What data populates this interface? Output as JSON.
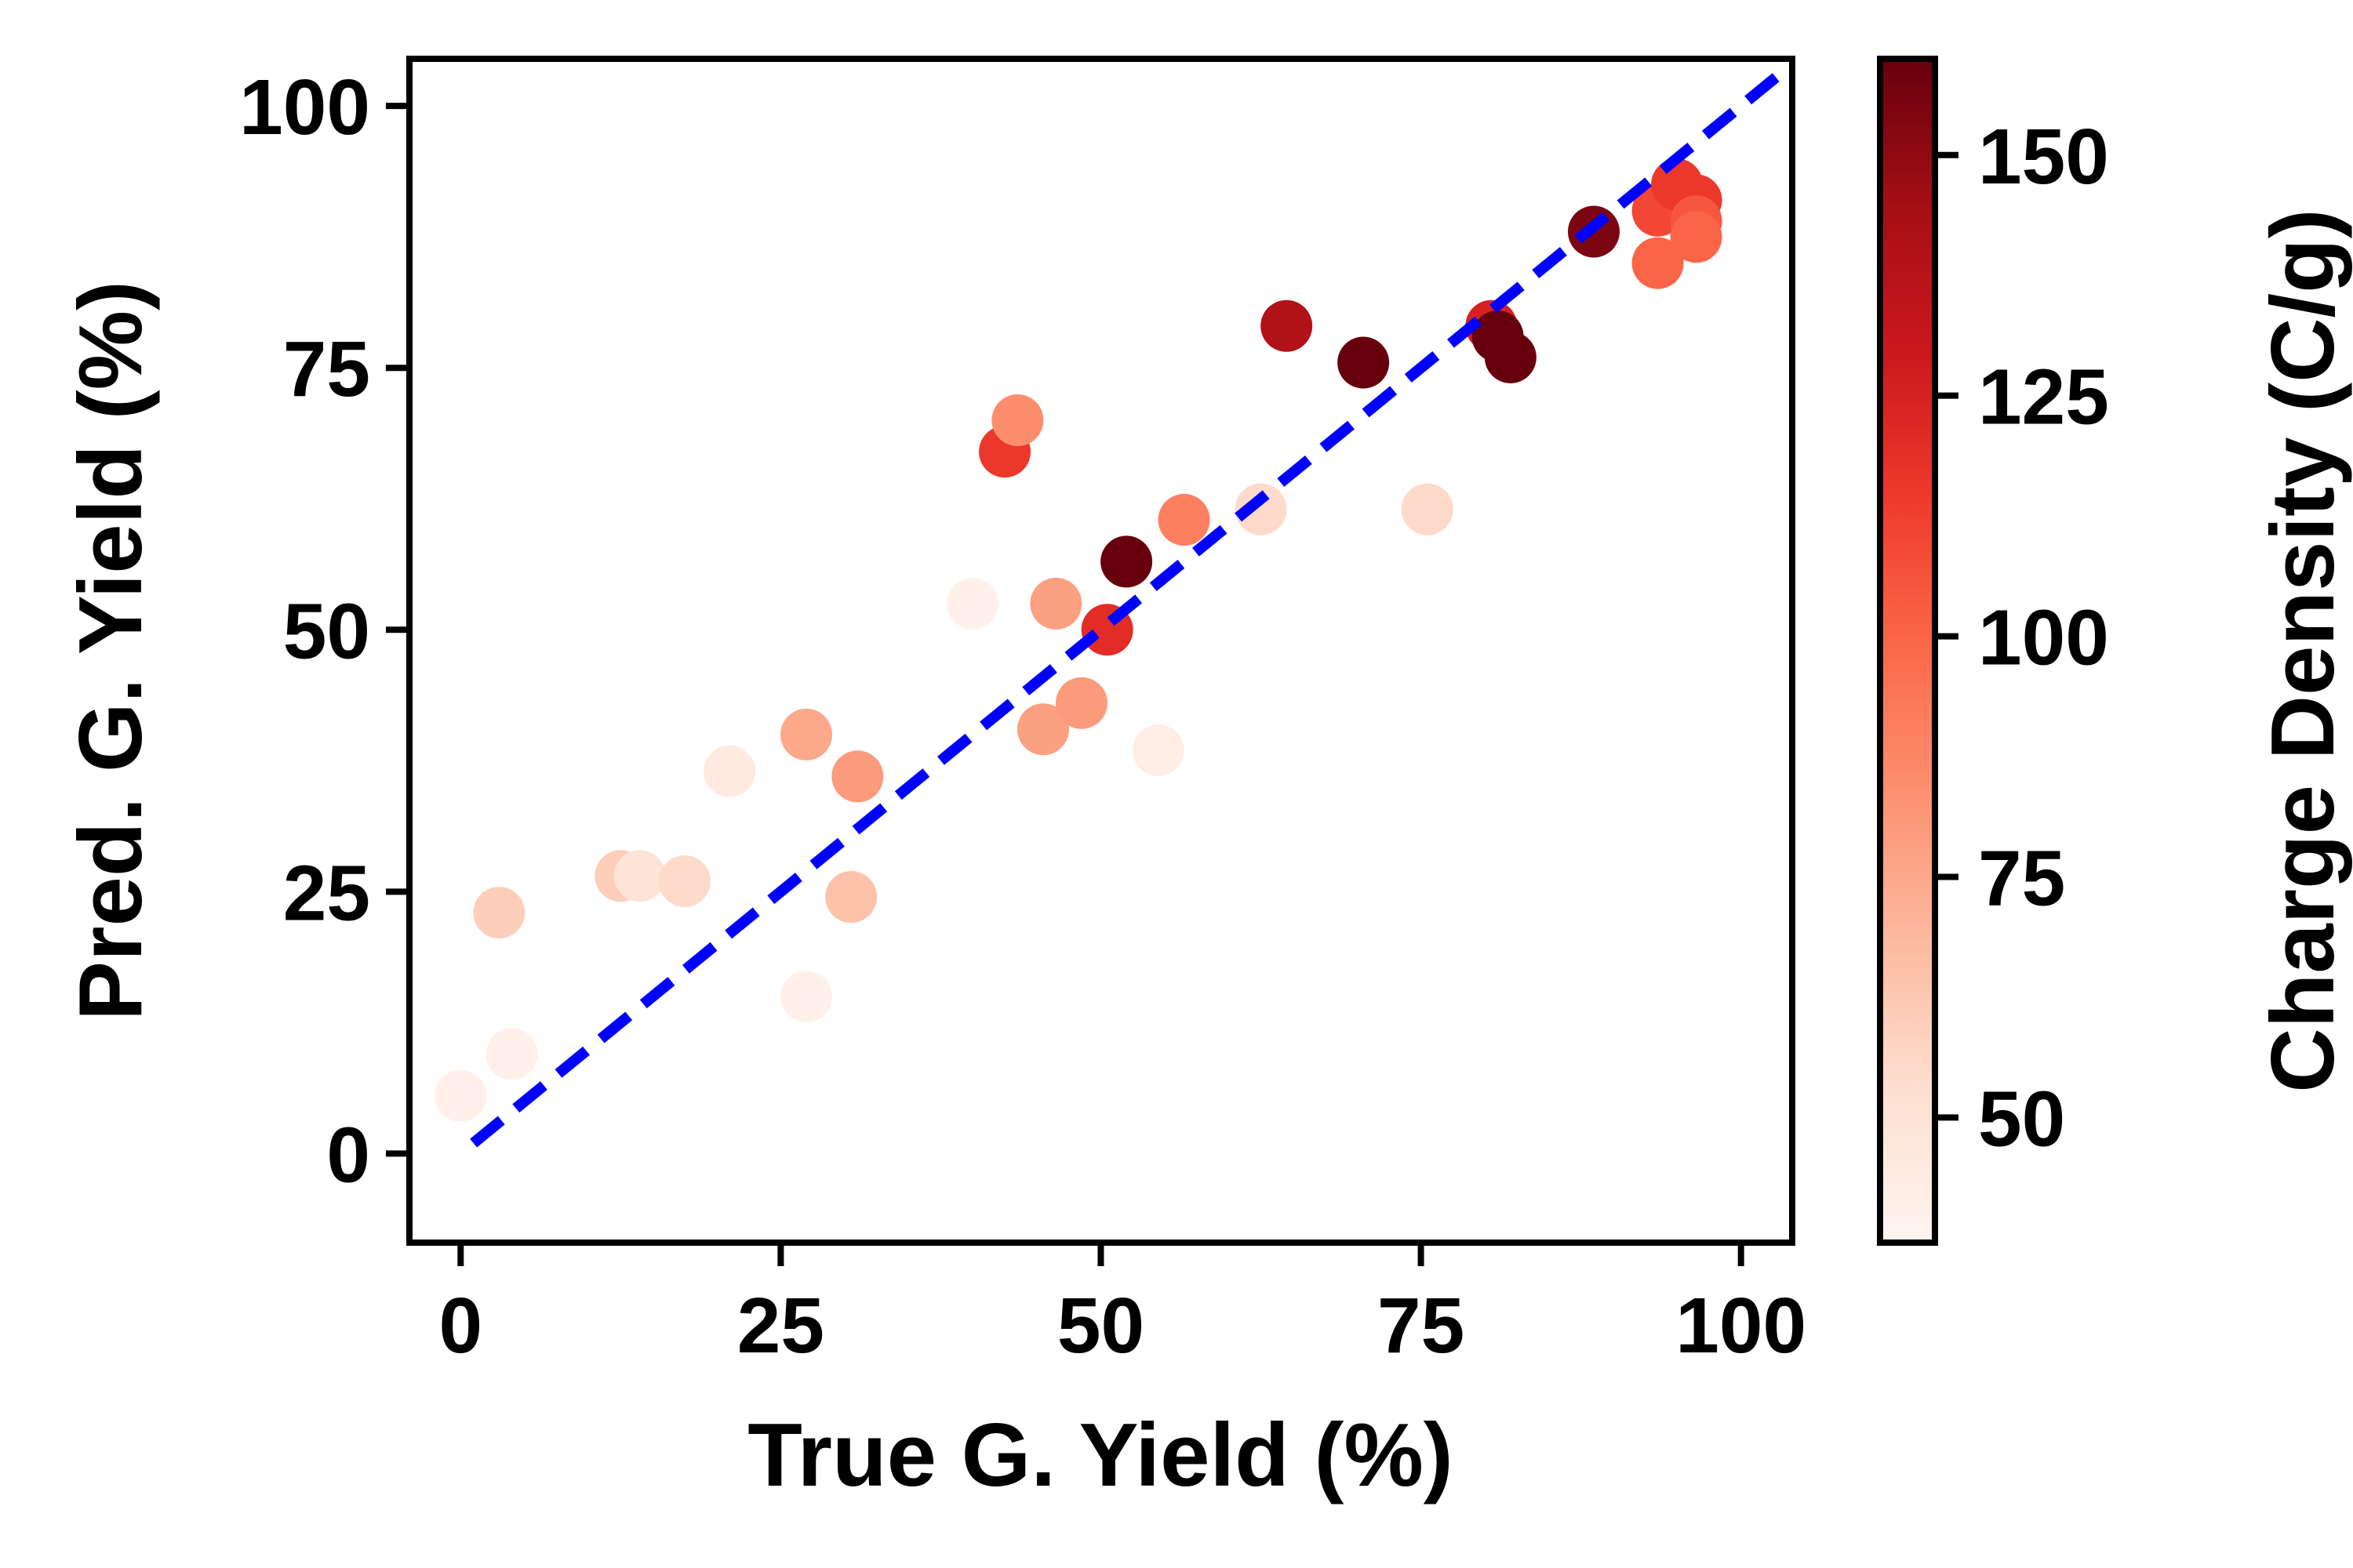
{
  "chart_data": {
    "type": "scatter",
    "xlabel": "True G. Yield (%)",
    "ylabel": "Pred. G. Yield (%)",
    "xlim": [
      -4,
      104
    ],
    "ylim": [
      -8.5,
      104.5
    ],
    "x_ticks": [
      0,
      25,
      50,
      75,
      100
    ],
    "y_ticks": [
      0,
      25,
      50,
      75,
      100
    ],
    "grid": false,
    "legend": "none",
    "reference_line": {
      "style": "dashed",
      "color": "#0000ff",
      "x": [
        1,
        103
      ],
      "y": [
        1,
        103
      ]
    },
    "colorbar": {
      "label": "Charge Density (C/g)",
      "colormap": "Reds",
      "range": [
        37,
        160
      ],
      "ticks": [
        50,
        75,
        100,
        125,
        150
      ],
      "stops": [
        "#fff5f0",
        "#fee0d2",
        "#fcbba1",
        "#fc9272",
        "#fb6a4a",
        "#ef3b2c",
        "#cb181d",
        "#a50f15",
        "#67000d"
      ]
    },
    "points": [
      {
        "x": 0.0,
        "y": 5.5,
        "c": 40
      },
      {
        "x": 3.0,
        "y": 23.0,
        "c": 60
      },
      {
        "x": 4.0,
        "y": 9.5,
        "c": 40
      },
      {
        "x": 12.5,
        "y": 26.5,
        "c": 60
      },
      {
        "x": 14.0,
        "y": 26.5,
        "c": 50
      },
      {
        "x": 17.5,
        "y": 26.0,
        "c": 55
      },
      {
        "x": 21.0,
        "y": 36.5,
        "c": 45
      },
      {
        "x": 27.0,
        "y": 40.0,
        "c": 75
      },
      {
        "x": 27.0,
        "y": 15.0,
        "c": 40
      },
      {
        "x": 30.5,
        "y": 24.5,
        "c": 65
      },
      {
        "x": 31.0,
        "y": 36.0,
        "c": 80
      },
      {
        "x": 40.0,
        "y": 52.5,
        "c": 40
      },
      {
        "x": 42.5,
        "y": 67.0,
        "c": 115
      },
      {
        "x": 43.5,
        "y": 70.0,
        "c": 85
      },
      {
        "x": 45.5,
        "y": 40.5,
        "c": 78
      },
      {
        "x": 46.5,
        "y": 52.5,
        "c": 78
      },
      {
        "x": 48.5,
        "y": 43.0,
        "c": 80
      },
      {
        "x": 50.5,
        "y": 50.0,
        "c": 120
      },
      {
        "x": 52.0,
        "y": 56.5,
        "c": 160
      },
      {
        "x": 54.5,
        "y": 38.5,
        "c": 42
      },
      {
        "x": 56.5,
        "y": 60.5,
        "c": 90
      },
      {
        "x": 62.5,
        "y": 61.5,
        "c": 55
      },
      {
        "x": 64.5,
        "y": 79.0,
        "c": 140
      },
      {
        "x": 70.5,
        "y": 75.5,
        "c": 160
      },
      {
        "x": 75.5,
        "y": 61.5,
        "c": 55
      },
      {
        "x": 80.5,
        "y": 79.0,
        "c": 125
      },
      {
        "x": 81.0,
        "y": 78.0,
        "c": 160
      },
      {
        "x": 82.0,
        "y": 76.0,
        "c": 160
      },
      {
        "x": 88.5,
        "y": 88.0,
        "c": 155
      },
      {
        "x": 93.5,
        "y": 85.0,
        "c": 100
      },
      {
        "x": 93.5,
        "y": 90.0,
        "c": 110
      },
      {
        "x": 95.0,
        "y": 92.5,
        "c": 115
      },
      {
        "x": 96.5,
        "y": 91.0,
        "c": 115
      },
      {
        "x": 96.5,
        "y": 89.0,
        "c": 105
      },
      {
        "x": 96.5,
        "y": 87.5,
        "c": 100
      }
    ]
  }
}
